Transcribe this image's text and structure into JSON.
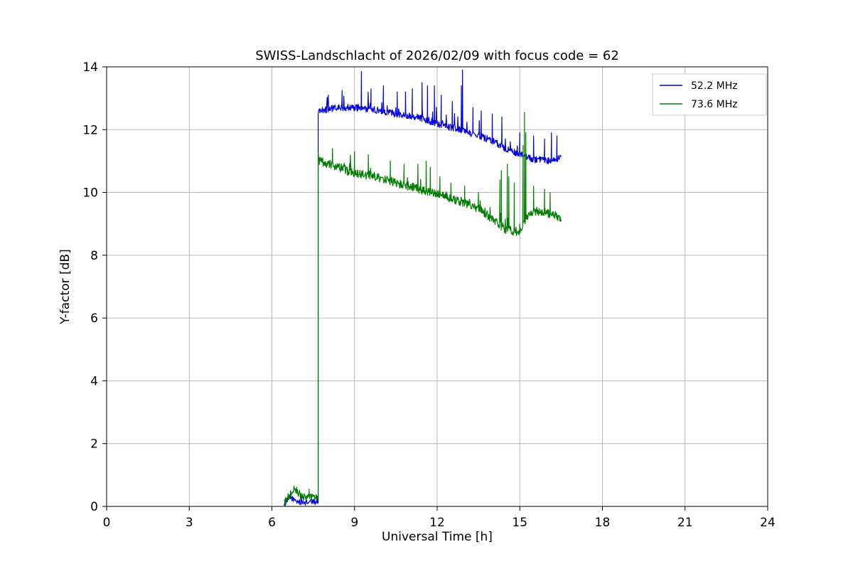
{
  "chart_data": {
    "type": "line",
    "title": "SWISS-Landschlacht of 2026/02/09 with focus code = 62",
    "xlabel": "Universal Time [h]",
    "ylabel": "Y-factor [dB]",
    "xlim": [
      0,
      24
    ],
    "ylim": [
      0,
      14
    ],
    "xticks": [
      0,
      3,
      6,
      9,
      12,
      15,
      18,
      21,
      24
    ],
    "yticks": [
      0,
      2,
      4,
      6,
      8,
      10,
      12,
      14
    ],
    "grid": true,
    "grid_color": "#b0b0b0",
    "legend_position": "upper right",
    "series": [
      {
        "name": "52.2 MHz",
        "color": "#0000dd",
        "segments": [
          {
            "x_start": 6.45,
            "x_end": 7.68,
            "noise": 0.09,
            "spike_rate": 0.05,
            "spike_extra": 0.25,
            "anchors": [
              [
                6.45,
                0.05
              ],
              [
                6.55,
                0.18
              ],
              [
                6.7,
                0.28
              ],
              [
                6.85,
                0.18
              ],
              [
                7.0,
                0.14
              ],
              [
                7.2,
                0.12
              ],
              [
                7.4,
                0.15
              ],
              [
                7.68,
                0.15
              ]
            ],
            "spikes": [
              [
                6.68,
                0.5
              ],
              [
                7.05,
                0.4
              ]
            ]
          },
          {
            "x_start": 7.68,
            "x_end": 16.5,
            "noise": 0.11,
            "spike_rate": 0.05,
            "spike_extra": 0.45,
            "anchors": [
              [
                7.68,
                12.6
              ],
              [
                8.0,
                12.65
              ],
              [
                8.5,
                12.7
              ],
              [
                9.0,
                12.7
              ],
              [
                9.5,
                12.65
              ],
              [
                10.0,
                12.6
              ],
              [
                10.5,
                12.5
              ],
              [
                11.0,
                12.45
              ],
              [
                11.5,
                12.35
              ],
              [
                12.0,
                12.2
              ],
              [
                12.3,
                12.1
              ],
              [
                12.7,
                12.05
              ],
              [
                13.0,
                11.95
              ],
              [
                13.5,
                11.8
              ],
              [
                14.0,
                11.65
              ],
              [
                14.5,
                11.4
              ],
              [
                15.0,
                11.2
              ],
              [
                15.5,
                11.05
              ],
              [
                16.0,
                11.0
              ],
              [
                16.5,
                11.1
              ]
            ],
            "spikes": [
              [
                8.05,
                13.1
              ],
              [
                8.55,
                13.25
              ],
              [
                9.25,
                13.85
              ],
              [
                9.6,
                13.3
              ],
              [
                10.05,
                13.4
              ],
              [
                10.55,
                13.2
              ],
              [
                10.85,
                13.2
              ],
              [
                11.1,
                13.3
              ],
              [
                11.45,
                13.5
              ],
              [
                11.65,
                13.4
              ],
              [
                11.9,
                13.4
              ],
              [
                12.15,
                13.1
              ],
              [
                12.55,
                12.9
              ],
              [
                12.88,
                13.4
              ],
              [
                12.92,
                13.9
              ],
              [
                13.3,
                12.7
              ],
              [
                13.6,
                12.6
              ],
              [
                14.0,
                12.5
              ],
              [
                14.35,
                12.4
              ],
              [
                15.0,
                11.9
              ],
              [
                15.5,
                11.8
              ],
              [
                15.9,
                11.7
              ],
              [
                16.15,
                11.9
              ],
              [
                16.35,
                11.8
              ]
            ]
          }
        ]
      },
      {
        "name": "73.6 MHz",
        "color": "#007d00",
        "segments": [
          {
            "x_start": 6.45,
            "x_end": 7.68,
            "noise": 0.13,
            "spike_rate": 0.04,
            "spike_extra": 0.2,
            "anchors": [
              [
                6.45,
                0.1
              ],
              [
                6.6,
                0.3
              ],
              [
                6.75,
                0.5
              ],
              [
                6.95,
                0.45
              ],
              [
                7.1,
                0.3
              ],
              [
                7.3,
                0.28
              ],
              [
                7.5,
                0.3
              ],
              [
                7.68,
                0.3
              ]
            ],
            "spikes": [
              [
                6.8,
                0.65
              ],
              [
                7.35,
                0.55
              ]
            ]
          },
          {
            "x_start": 7.68,
            "x_end": 16.5,
            "noise": 0.14,
            "spike_rate": 0.05,
            "spike_extra": 0.4,
            "anchors": [
              [
                7.68,
                11.0
              ],
              [
                8.3,
                10.85
              ],
              [
                9.0,
                10.6
              ],
              [
                9.5,
                10.55
              ],
              [
                10.0,
                10.45
              ],
              [
                10.5,
                10.3
              ],
              [
                11.0,
                10.2
              ],
              [
                11.5,
                10.05
              ],
              [
                12.0,
                9.95
              ],
              [
                12.5,
                9.8
              ],
              [
                13.0,
                9.65
              ],
              [
                13.5,
                9.5
              ],
              [
                14.0,
                9.15
              ],
              [
                14.5,
                8.8
              ],
              [
                15.0,
                8.75
              ],
              [
                15.3,
                9.3
              ],
              [
                15.6,
                9.4
              ],
              [
                16.0,
                9.35
              ],
              [
                16.5,
                9.2
              ]
            ],
            "spikes": [
              [
                8.2,
                11.4
              ],
              [
                9.0,
                11.3
              ],
              [
                9.5,
                11.2
              ],
              [
                10.3,
                11.0
              ],
              [
                10.8,
                10.9
              ],
              [
                11.3,
                10.9
              ],
              [
                11.6,
                11.0
              ],
              [
                11.75,
                10.8
              ],
              [
                12.1,
                10.5
              ],
              [
                12.5,
                10.3
              ],
              [
                13.0,
                10.2
              ],
              [
                13.5,
                10.0
              ],
              [
                14.28,
                10.4
              ],
              [
                14.33,
                10.7
              ],
              [
                14.55,
                10.9
              ],
              [
                14.6,
                10.5
              ],
              [
                14.8,
                10.3
              ],
              [
                15.12,
                11.5
              ],
              [
                15.17,
                12.55
              ],
              [
                15.22,
                11.9
              ],
              [
                15.5,
                10.2
              ],
              [
                15.9,
                10.1
              ],
              [
                16.1,
                10.0
              ]
            ]
          }
        ]
      }
    ]
  }
}
